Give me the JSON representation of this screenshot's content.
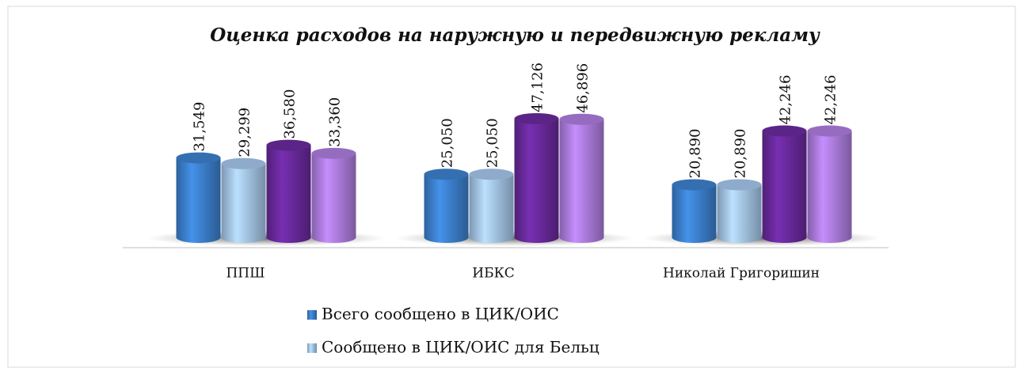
{
  "chart_data": {
    "type": "bar3d",
    "title": "Оценка расходов на наружную и передвижную рекламу",
    "categories": [
      "ППШ",
      "ИБКС",
      "Николай Григоришин"
    ],
    "series": [
      {
        "name": "Всего сообщено в ЦИК/ОИС",
        "color": "#3d82d1",
        "values": [
          31549,
          25050,
          20890
        ],
        "value_labels": [
          "31,549",
          "25,050",
          "20,890"
        ]
      },
      {
        "name": "Сообщено в ЦИК/ОИС для Бельц",
        "color": "#a7c9ef",
        "values": [
          29299,
          25050,
          20890
        ],
        "value_labels": [
          "29,299",
          "25,050",
          "20,890"
        ]
      },
      {
        "color": "#6b2a9f",
        "values": [
          36580,
          47126,
          42246
        ],
        "value_labels": [
          "36,580",
          "47,126",
          "42,246"
        ]
      },
      {
        "color": "#b07fe2",
        "values": [
          33360,
          46896,
          42246
        ],
        "value_labels": [
          "33,360",
          "46,896",
          "42,246"
        ]
      }
    ]
  }
}
